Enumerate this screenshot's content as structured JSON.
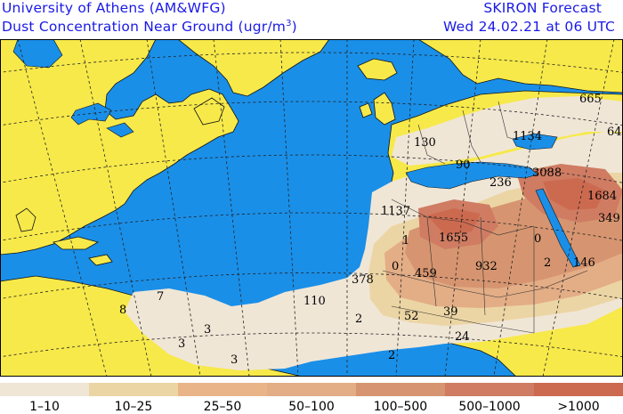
{
  "header": {
    "institution": "University of Athens (AM&WFG)",
    "product": "SKIRON Forecast",
    "variable": "Dust Concentration Near Ground (ugr/m",
    "variable_sup": "3",
    "variable_end": ")",
    "valid_time": "Wed 24.02.21 at 06 UTC"
  },
  "colors": {
    "ocean": "#1a8fe8",
    "land": "#f7e94a",
    "grid": "#222222",
    "text": "#1a1ae6"
  },
  "legend": {
    "bins": [
      {
        "label": "1–10",
        "color": "#f0e6d6"
      },
      {
        "label": "10–25",
        "color": "#ecd5a4"
      },
      {
        "label": "25–50",
        "color": "#e9b488"
      },
      {
        "label": "50–100",
        "color": "#e3ad86"
      },
      {
        "label": "100–500",
        "color": "#d69570"
      },
      {
        "label": "500–1000",
        "color": "#cf7c63"
      },
      {
        "label": ">1000",
        "color": "#cc6a50"
      }
    ]
  },
  "values": [
    "665",
    "64",
    "130",
    "1134",
    "90",
    "3088",
    "236",
    "1684",
    "1137",
    "349",
    "1",
    "1655",
    "0",
    "0",
    "459",
    "932",
    "2",
    "146",
    "378",
    "7",
    "8",
    "110",
    "3",
    "2",
    "52",
    "39",
    "3",
    "24",
    "3",
    "2"
  ]
}
